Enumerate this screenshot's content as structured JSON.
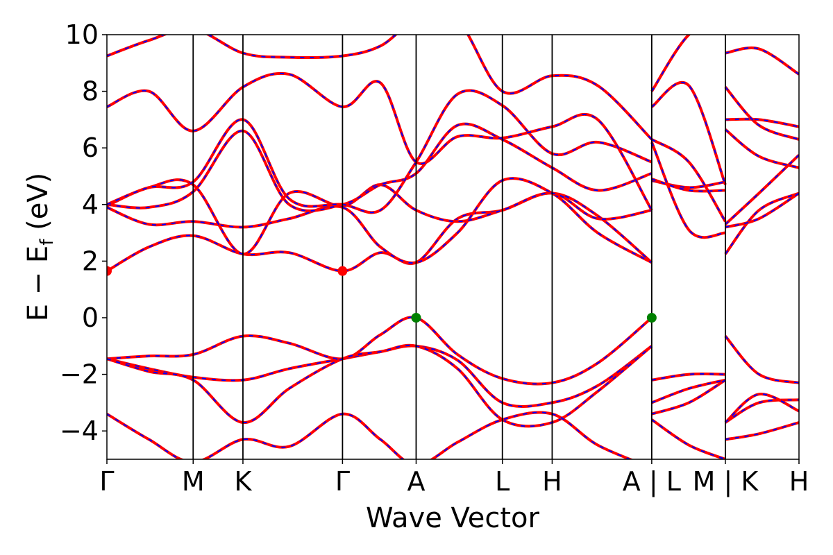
{
  "chart_data": {
    "type": "line",
    "xlabel": "Wave Vector",
    "ylabel": "E − E",
    "ylabel_sub": "f",
    "ylabel_unit": " (eV)",
    "ylim": [
      -5,
      10
    ],
    "y_ticks": [
      -4,
      -2,
      0,
      2,
      4,
      6,
      8,
      10
    ],
    "y_tick_labels": [
      "−4",
      "−2",
      "0",
      "2",
      "4",
      "6",
      "8",
      "10"
    ],
    "k_path_ticks": [
      {
        "label": "Γ",
        "k": 0.0
      },
      {
        "label": "M",
        "k": 1.23
      },
      {
        "label": "K",
        "k": 1.94
      },
      {
        "label": "Γ",
        "k": 3.36
      },
      {
        "label": "A",
        "k": 4.41
      },
      {
        "label": "L",
        "k": 5.64
      },
      {
        "label": "H",
        "k": 6.35
      },
      {
        "label": "A | L",
        "k": 7.77
      },
      {
        "label": "M | K",
        "k": 8.82
      },
      {
        "label": "H",
        "k": 9.87
      }
    ],
    "xlim": [
      0,
      9.87
    ],
    "line_colors": {
      "dft": "#ff0000",
      "wannier": "#0000ff"
    },
    "extrema": [
      {
        "kind": "cbm",
        "k": 0.0,
        "E": 1.65,
        "color": "#ff0000"
      },
      {
        "kind": "cbm",
        "k": 3.36,
        "E": 1.65,
        "color": "#ff0000"
      },
      {
        "kind": "vbm",
        "k": 4.41,
        "E": 0.0,
        "color": "#008000"
      },
      {
        "kind": "vbm",
        "k": 7.77,
        "E": 0.0,
        "color": "#008000"
      }
    ],
    "bands": [
      {
        "k": [
          0,
          0.6,
          1.23,
          1.94,
          2.6,
          3.36,
          3.9,
          4.41,
          5.0,
          5.64,
          6.35,
          7.0,
          7.77
        ],
        "E": [
          -1.45,
          -1.35,
          -1.3,
          -0.65,
          -0.9,
          -1.45,
          -0.6,
          0.0,
          -1.3,
          -2.15,
          -2.3,
          -1.6,
          0.0
        ]
      },
      {
        "k": [
          0,
          0.6,
          1.23,
          1.94,
          2.6,
          3.36,
          3.9,
          4.41,
          5.0,
          5.64,
          6.35,
          7.0,
          7.77
        ],
        "E": [
          -1.45,
          -1.8,
          -2.1,
          -2.2,
          -1.8,
          -1.45,
          -1.2,
          -1.0,
          -1.5,
          -3.0,
          -3.0,
          -2.4,
          -1.0
        ]
      },
      {
        "k": [
          0,
          0.6,
          1.23,
          1.94,
          2.6,
          3.36,
          3.9,
          4.41,
          5.0,
          5.64,
          6.35,
          7.0,
          7.77
        ],
        "E": [
          -1.45,
          -1.9,
          -2.2,
          -3.7,
          -2.5,
          -1.45,
          -1.2,
          -1.0,
          -1.8,
          -3.6,
          -3.7,
          -2.6,
          -1.0
        ]
      },
      {
        "k": [
          0,
          0.6,
          1.23,
          1.94,
          2.6,
          3.36,
          3.9,
          4.41,
          5.0,
          5.64,
          6.35,
          7.0,
          7.77
        ],
        "E": [
          -3.4,
          -4.3,
          -5.1,
          -4.3,
          -4.55,
          -3.4,
          -4.3,
          -5.2,
          -4.4,
          -3.6,
          -3.4,
          -4.5,
          -5.3
        ]
      },
      {
        "k": [
          7.77,
          8.3,
          8.82
        ],
        "E": [
          -2.2,
          -2.0,
          -2.0
        ]
      },
      {
        "k": [
          7.77,
          8.3,
          8.82
        ],
        "E": [
          -3.0,
          -2.5,
          -2.2
        ]
      },
      {
        "k": [
          7.77,
          8.3,
          8.82
        ],
        "E": [
          -3.4,
          -3.0,
          -2.2
        ]
      },
      {
        "k": [
          7.77,
          8.3,
          8.82
        ],
        "E": [
          -3.6,
          -4.5,
          -5.0
        ]
      },
      {
        "k": [
          8.82,
          9.3,
          9.87
        ],
        "E": [
          -0.65,
          -2.0,
          -2.3
        ]
      },
      {
        "k": [
          8.82,
          9.3,
          9.87
        ],
        "E": [
          -3.7,
          -3.0,
          -2.9
        ]
      },
      {
        "k": [
          8.82,
          9.3,
          9.87
        ],
        "E": [
          -3.7,
          -2.7,
          -3.3
        ]
      },
      {
        "k": [
          8.82,
          9.3,
          9.87
        ],
        "E": [
          -4.3,
          -4.1,
          -3.7
        ]
      },
      {
        "k": [
          0,
          0.6,
          1.23,
          1.94,
          2.6,
          3.36,
          3.9,
          4.41,
          5.0,
          5.64,
          6.35,
          7.0,
          7.77
        ],
        "E": [
          1.65,
          2.5,
          2.9,
          2.25,
          2.3,
          1.65,
          2.3,
          1.95,
          3.5,
          3.8,
          4.4,
          3.6,
          1.95
        ]
      },
      {
        "k": [
          0,
          0.6,
          1.23,
          1.94,
          2.6,
          3.36,
          3.9,
          4.41,
          5.0,
          5.64,
          6.35,
          7.0,
          7.77
        ],
        "E": [
          3.9,
          3.3,
          3.4,
          3.2,
          3.5,
          3.9,
          2.5,
          1.95,
          3.0,
          4.85,
          4.4,
          3.0,
          1.95
        ]
      },
      {
        "k": [
          0,
          0.6,
          1.23,
          1.94,
          2.6,
          3.36,
          3.9,
          4.41,
          5.0,
          5.64,
          6.35,
          7.0,
          7.77
        ],
        "E": [
          3.95,
          4.6,
          4.7,
          2.25,
          4.4,
          3.95,
          4.7,
          3.8,
          3.4,
          3.8,
          4.4,
          3.5,
          3.8
        ]
      },
      {
        "k": [
          0,
          0.6,
          1.23,
          1.94,
          2.6,
          3.36,
          3.9,
          4.41,
          5.0,
          5.64,
          6.35,
          7.0,
          7.77
        ],
        "E": [
          4.0,
          3.9,
          4.45,
          6.6,
          4.0,
          4.0,
          4.7,
          5.1,
          6.8,
          6.3,
          5.3,
          4.5,
          5.1
        ]
      },
      {
        "k": [
          0,
          0.6,
          1.23,
          1.94,
          2.6,
          3.36,
          3.9,
          4.41,
          5.0,
          5.64,
          6.35,
          7.0,
          7.77
        ],
        "E": [
          4.0,
          4.6,
          4.8,
          7.0,
          4.2,
          4.0,
          3.8,
          5.5,
          7.9,
          7.5,
          5.8,
          6.2,
          5.5
        ]
      },
      {
        "k": [
          0,
          0.6,
          1.23,
          1.94,
          2.6,
          3.36,
          3.9,
          4.41,
          5.0,
          5.64,
          6.35,
          7.0,
          7.77
        ],
        "E": [
          7.45,
          8.0,
          6.6,
          8.15,
          8.6,
          7.45,
          8.3,
          5.5,
          6.4,
          6.35,
          6.75,
          7.0,
          3.8
        ]
      },
      {
        "k": [
          0,
          0.6,
          1.23,
          1.94,
          2.6,
          3.36,
          3.9,
          4.41,
          5.0,
          5.64,
          6.35,
          7.0,
          7.77
        ],
        "E": [
          9.25,
          9.8,
          10.2,
          9.35,
          9.2,
          9.25,
          9.6,
          10.5,
          10.5,
          8.0,
          8.55,
          8.2,
          6.3
        ]
      },
      {
        "k": [
          7.77,
          8.3,
          8.82
        ],
        "E": [
          4.85,
          4.6,
          4.8
        ]
      },
      {
        "k": [
          7.77,
          8.3,
          8.82
        ],
        "E": [
          4.9,
          4.5,
          4.5
        ]
      },
      {
        "k": [
          7.77,
          8.3,
          8.82
        ],
        "E": [
          6.3,
          5.5,
          3.4
        ]
      },
      {
        "k": [
          7.77,
          8.3,
          8.82
        ],
        "E": [
          6.2,
          3.1,
          3.0
        ]
      },
      {
        "k": [
          7.77,
          8.3,
          8.82
        ],
        "E": [
          7.45,
          8.2,
          4.7
        ]
      },
      {
        "k": [
          7.77,
          8.3,
          8.82
        ],
        "E": [
          8.0,
          10.0,
          10.5
        ]
      },
      {
        "k": [
          8.82,
          9.3,
          9.87
        ],
        "E": [
          2.25,
          3.8,
          4.4
        ]
      },
      {
        "k": [
          8.82,
          9.3,
          9.87
        ],
        "E": [
          3.2,
          3.5,
          4.4
        ]
      },
      {
        "k": [
          8.82,
          9.3,
          9.87
        ],
        "E": [
          3.3,
          4.4,
          5.75
        ]
      },
      {
        "k": [
          8.82,
          9.3,
          9.87
        ],
        "E": [
          6.65,
          5.7,
          5.3
        ]
      },
      {
        "k": [
          8.82,
          9.3,
          9.87
        ],
        "E": [
          7.0,
          7.0,
          6.75
        ]
      },
      {
        "k": [
          8.82,
          9.3,
          9.87
        ],
        "E": [
          8.15,
          6.8,
          6.3
        ]
      },
      {
        "k": [
          8.82,
          9.3,
          9.87
        ],
        "E": [
          9.35,
          9.5,
          8.6
        ]
      }
    ]
  }
}
